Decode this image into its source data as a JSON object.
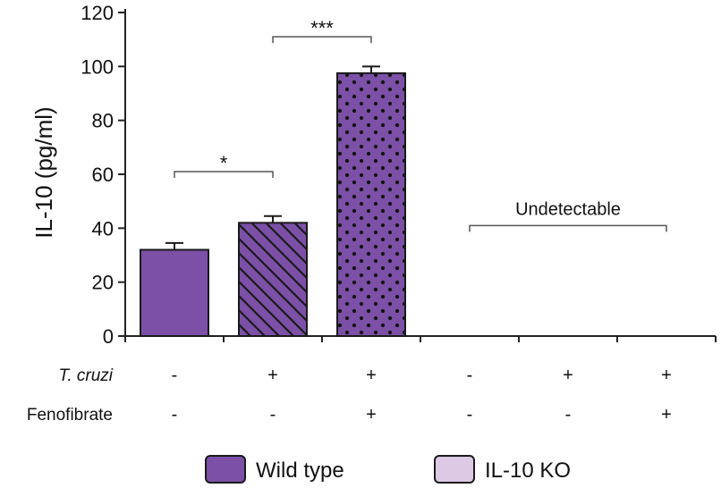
{
  "chart_data": {
    "type": "bar",
    "title": "",
    "xlabel": "",
    "ylabel": "IL-10 (pg/ml)",
    "ylim": [
      0,
      120
    ],
    "yticks": [
      0,
      20,
      40,
      60,
      80,
      100,
      120
    ],
    "groups": [
      {
        "tcruzi": "-",
        "fenofibrate": "-",
        "value": 32,
        "error": 2.5,
        "series": "Wild type",
        "pattern": "solid"
      },
      {
        "tcruzi": "+",
        "fenofibrate": "-",
        "value": 42,
        "error": 2.5,
        "series": "Wild type",
        "pattern": "hatch"
      },
      {
        "tcruzi": "+",
        "fenofibrate": "+",
        "value": 97.5,
        "error": 2.5,
        "series": "Wild type",
        "pattern": "dots"
      },
      {
        "tcruzi": "-",
        "fenofibrate": "-",
        "value": null,
        "error": null,
        "series": "IL-10 KO",
        "pattern": "none"
      },
      {
        "tcruzi": "+",
        "fenofibrate": "-",
        "value": null,
        "error": null,
        "series": "IL-10 KO",
        "pattern": "none"
      },
      {
        "tcruzi": "+",
        "fenofibrate": "+",
        "value": null,
        "error": null,
        "series": "IL-10 KO",
        "pattern": "none"
      }
    ],
    "row_labels": {
      "tcruzi": "T. cruzi",
      "fenofibrate": "Fenofibrate"
    },
    "annotations": [
      {
        "text": "*",
        "from_group": 0,
        "to_group": 1,
        "y": 61
      },
      {
        "text": "***",
        "from_group": 1,
        "to_group": 2,
        "y": 111
      },
      {
        "text": "Undetectable",
        "from_group": 3,
        "to_group": 5,
        "y": 41
      }
    ],
    "legend": [
      {
        "label": "Wild type",
        "color": "#7b50a6"
      },
      {
        "label": "IL-10 KO",
        "color": "#dcc9e4"
      }
    ],
    "bar_color": "#7b50a6"
  }
}
